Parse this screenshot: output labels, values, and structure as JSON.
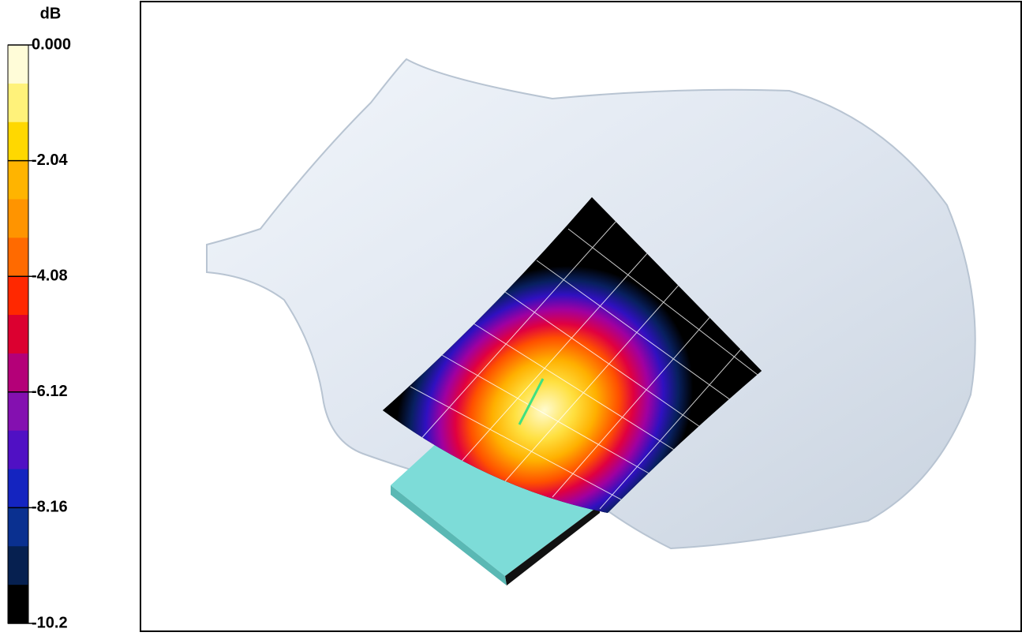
{
  "colorbar": {
    "title": "dB",
    "lim": [
      -10.2,
      0
    ],
    "ticks": [
      {
        "value": 0,
        "label": "0.000"
      },
      -2.04,
      -4.08,
      -6.12,
      -8.16,
      -10.2
    ],
    "colors": [
      "#fffcd8",
      "#fff27a",
      "#ffd800",
      "#ffb400",
      "#ff9400",
      "#ff6a00",
      "#ff2800",
      "#dc0030",
      "#b40078",
      "#8410b0",
      "#5010c4",
      "#1424c0",
      "#0a3090",
      "#062050",
      "#000000"
    ]
  }
}
